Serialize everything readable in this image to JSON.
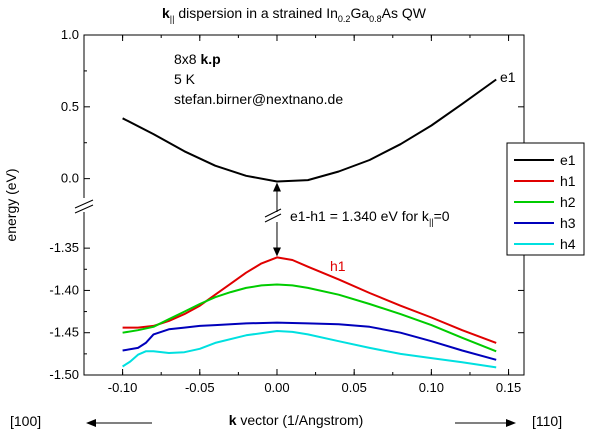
{
  "chart_data": {
    "type": "line",
    "title": {
      "bold": "k",
      "bold_sub": "||",
      "part1": " dispersion in a strained In",
      "sub1": "0.2",
      "part2": "Ga",
      "sub2": "0.8",
      "part3": "As QW"
    },
    "xlabel": {
      "bold": "k",
      "text": " vector (1/Angstrom)"
    },
    "ylabel": "energy (eV)",
    "direction_left": "[100]",
    "direction_right": "[110]",
    "x_ticks": [
      "-0.10",
      "-0.05",
      "0.00",
      "0.05",
      "0.10",
      "0.15"
    ],
    "y_ticks_upper": [
      "1.0",
      "0.5",
      "0.0"
    ],
    "y_ticks_lower": [
      "-1.35",
      "-1.40",
      "-1.45",
      "-1.50"
    ],
    "xlim": [
      -0.125,
      0.16
    ],
    "ylim_upper": [
      -0.1,
      1.0
    ],
    "ylim_lower": [
      -1.5,
      -1.325
    ],
    "annotations": {
      "method_pre": "8x8 ",
      "method_bold": "k.p",
      "temperature": "5 K",
      "email": "stefan.birner@nextnano.de",
      "gap_pre": "e1-h1 = 1.340 eV for k",
      "gap_sub": "||",
      "gap_post": "=0",
      "label_e1": "e1",
      "label_h1": "h1"
    },
    "legend_position": "right",
    "series": [
      {
        "name": "e1",
        "color": "#000000",
        "panel": "upper",
        "x": [
          -0.1,
          -0.08,
          -0.06,
          -0.04,
          -0.02,
          0.0,
          0.02,
          0.04,
          0.06,
          0.08,
          0.1,
          0.12,
          0.142
        ],
        "y": [
          0.42,
          0.31,
          0.19,
          0.09,
          0.02,
          -0.02,
          -0.01,
          0.05,
          0.13,
          0.24,
          0.37,
          0.52,
          0.69
        ]
      },
      {
        "name": "h1",
        "color": "#e00000",
        "panel": "lower",
        "x": [
          -0.1,
          -0.09,
          -0.08,
          -0.07,
          -0.06,
          -0.05,
          -0.04,
          -0.03,
          -0.02,
          -0.01,
          0.0,
          0.01,
          0.02,
          0.04,
          0.06,
          0.08,
          0.1,
          0.12,
          0.142
        ],
        "y": [
          -1.444,
          -1.444,
          -1.442,
          -1.436,
          -1.428,
          -1.418,
          -1.405,
          -1.392,
          -1.379,
          -1.368,
          -1.361,
          -1.364,
          -1.372,
          -1.387,
          -1.403,
          -1.418,
          -1.432,
          -1.447,
          -1.462
        ]
      },
      {
        "name": "h2",
        "color": "#00cc00",
        "panel": "lower",
        "x": [
          -0.1,
          -0.09,
          -0.08,
          -0.07,
          -0.06,
          -0.05,
          -0.04,
          -0.03,
          -0.02,
          -0.01,
          0.0,
          0.01,
          0.02,
          0.04,
          0.06,
          0.08,
          0.1,
          0.12,
          0.142
        ],
        "y": [
          -1.45,
          -1.447,
          -1.443,
          -1.434,
          -1.425,
          -1.416,
          -1.408,
          -1.402,
          -1.397,
          -1.394,
          -1.393,
          -1.394,
          -1.397,
          -1.405,
          -1.416,
          -1.428,
          -1.441,
          -1.456,
          -1.472
        ]
      },
      {
        "name": "h3",
        "color": "#0000bb",
        "panel": "lower",
        "x": [
          -0.1,
          -0.09,
          -0.085,
          -0.08,
          -0.07,
          -0.06,
          -0.05,
          -0.04,
          -0.02,
          0.0,
          0.02,
          0.04,
          0.06,
          0.08,
          0.1,
          0.12,
          0.142
        ],
        "y": [
          -1.471,
          -1.468,
          -1.462,
          -1.452,
          -1.446,
          -1.444,
          -1.442,
          -1.441,
          -1.439,
          -1.438,
          -1.439,
          -1.44,
          -1.443,
          -1.45,
          -1.46,
          -1.471,
          -1.482
        ]
      },
      {
        "name": "h4",
        "color": "#00e0e0",
        "panel": "lower",
        "x": [
          -0.1,
          -0.095,
          -0.09,
          -0.085,
          -0.08,
          -0.07,
          -0.06,
          -0.05,
          -0.04,
          -0.02,
          0.0,
          0.01,
          0.02,
          0.04,
          0.06,
          0.08,
          0.1,
          0.12,
          0.142
        ],
        "y": [
          -1.49,
          -1.484,
          -1.476,
          -1.472,
          -1.472,
          -1.474,
          -1.473,
          -1.469,
          -1.462,
          -1.453,
          -1.448,
          -1.449,
          -1.452,
          -1.46,
          -1.468,
          -1.475,
          -1.48,
          -1.485,
          -1.491
        ]
      }
    ]
  }
}
